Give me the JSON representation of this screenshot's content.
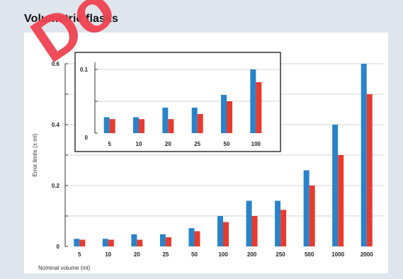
{
  "title": "Volumetric flasks",
  "watermark": "Do",
  "colors": {
    "background": "#dfe5ec",
    "series_a": "#2a83c9",
    "series_b": "#e63b2e",
    "watermark": "#ef4251"
  },
  "chart_data": [
    {
      "type": "bar",
      "categories": [
        "5",
        "10",
        "20",
        "25",
        "50",
        "100",
        "200",
        "250",
        "500",
        "1000",
        "2000"
      ],
      "series": [
        {
          "values": [
            0.025,
            0.025,
            0.04,
            0.04,
            0.06,
            0.1,
            0.15,
            0.15,
            0.25,
            0.4,
            0.6
          ]
        },
        {
          "values": [
            0.022,
            0.022,
            0.022,
            0.03,
            0.05,
            0.08,
            0.1,
            0.12,
            0.2,
            0.3,
            0.5
          ]
        }
      ],
      "xlabel": "Nominal volume (ml)",
      "ylabel": "Error limits (± ml)",
      "ylim": [
        0,
        0.6
      ],
      "yticks": [
        0,
        0.2,
        0.4,
        0.6
      ],
      "yticklabels": [
        "0",
        "0.2",
        "0.4",
        "0.6"
      ],
      "grid": true
    },
    {
      "type": "bar",
      "categories": [
        "5",
        "10",
        "20",
        "25",
        "50",
        "100"
      ],
      "series": [
        {
          "values": [
            0.025,
            0.025,
            0.04,
            0.04,
            0.06,
            0.1
          ]
        },
        {
          "values": [
            0.022,
            0.022,
            0.022,
            0.03,
            0.05,
            0.08
          ]
        }
      ],
      "ylim": [
        0,
        0.1
      ],
      "yticks": [
        0,
        0.1
      ],
      "yticklabels": [
        "0",
        "0.1"
      ],
      "grid": true
    }
  ]
}
